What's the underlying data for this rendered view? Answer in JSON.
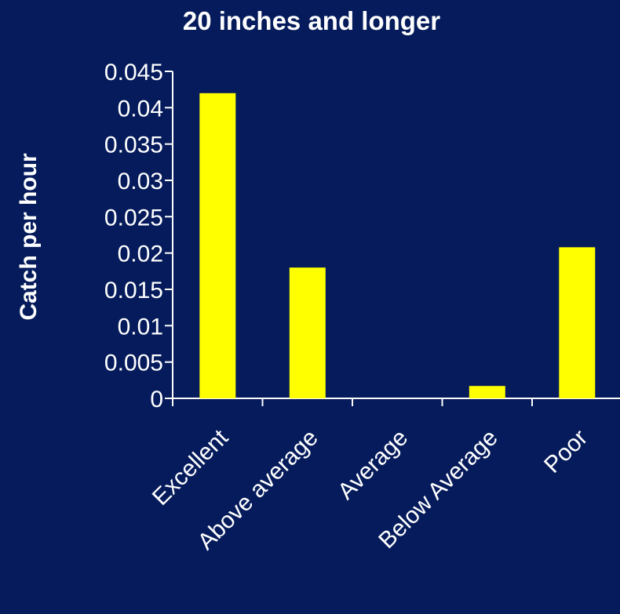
{
  "colors": {
    "background": "#051b5b",
    "bar": "#ffff00",
    "axis": "#ffffff",
    "text": "#ffffff"
  },
  "chart_data": {
    "type": "bar",
    "title": "20 inches and longer",
    "xlabel": "",
    "ylabel": "Catch per hour",
    "categories": [
      "Excellent",
      "Above average",
      "Average",
      "Below Average",
      "Poor"
    ],
    "values": [
      0.042,
      0.018,
      0,
      0.0017,
      0.0208
    ],
    "ylim": [
      0,
      0.045
    ],
    "yticks": [
      "0",
      "0.005",
      "0.01",
      "0.015",
      "0.02",
      "0.025",
      "0.03",
      "0.035",
      "0.04",
      "0.045"
    ],
    "grid": false,
    "legend": "none"
  }
}
